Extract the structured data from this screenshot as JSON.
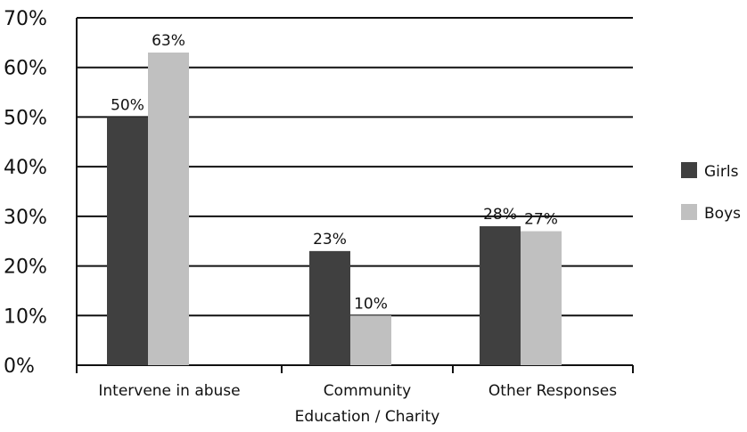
{
  "chart_data": {
    "type": "bar",
    "categories": [
      [
        "Intervene in abuse"
      ],
      [
        "Community",
        "Education / Charity"
      ],
      [
        "Other Responses"
      ]
    ],
    "series": [
      {
        "name": "Girls",
        "values": [
          50,
          23,
          28
        ],
        "labels": [
          "50%",
          "23%",
          "28%"
        ],
        "color": "#404040"
      },
      {
        "name": "Boys",
        "values": [
          63,
          10,
          27
        ],
        "labels": [
          "63%",
          "10%",
          "27%"
        ],
        "color": "#c0c0c0"
      }
    ],
    "ylim": [
      0,
      70
    ],
    "yticks": [
      0,
      10,
      20,
      30,
      40,
      50,
      60,
      70
    ],
    "ytick_labels": [
      "0%",
      "10%",
      "20%",
      "30%",
      "40%",
      "50%",
      "60%",
      "70%"
    ],
    "grid": true,
    "legend": "right",
    "title": "",
    "xlabel": "",
    "ylabel": ""
  }
}
